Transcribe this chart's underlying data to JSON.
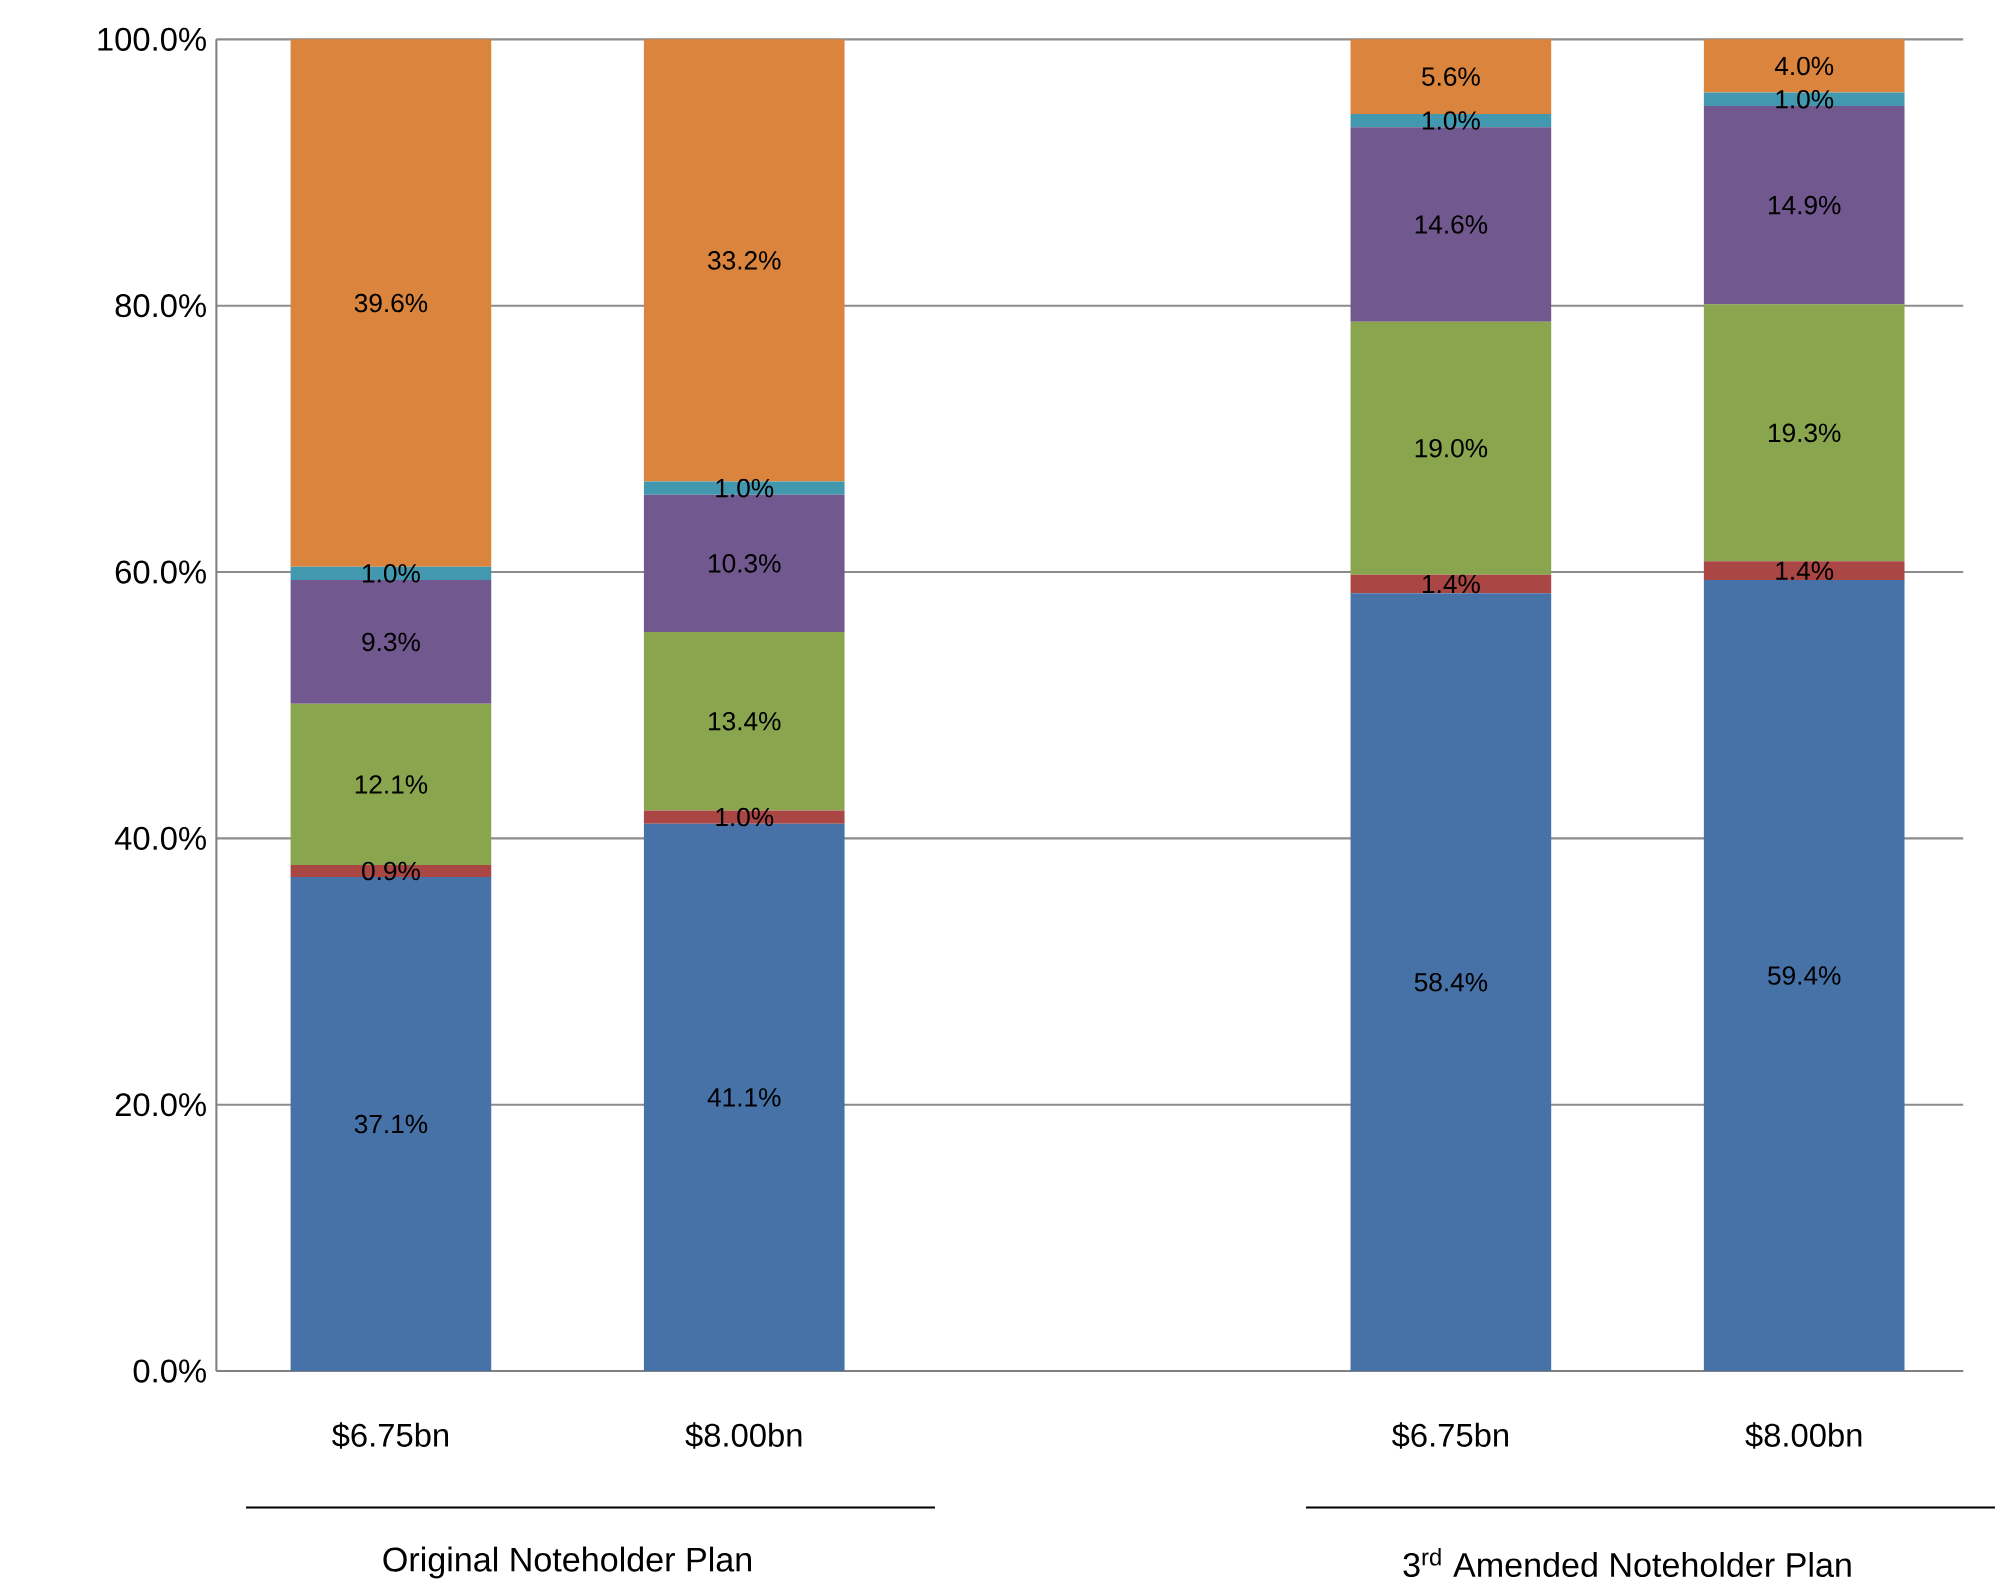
{
  "chart_data": {
    "type": "bar",
    "stacked": true,
    "categories": [
      "$6.75bn",
      "$8.00bn",
      null,
      "$6.75bn",
      "$8.00bn"
    ],
    "series": [
      {
        "color": "#4672a8",
        "values": [
          37.1,
          41.1,
          null,
          58.4,
          59.4
        ],
        "value_labels": [
          "37.1%",
          "41.1%",
          null,
          "58.4%",
          "59.4%"
        ]
      },
      {
        "color": "#aa4644",
        "values": [
          0.9,
          1.0,
          null,
          1.4,
          1.4
        ],
        "value_labels": [
          "0.9%",
          "1.0%",
          null,
          "1.4%",
          "1.4%"
        ]
      },
      {
        "color": "#89a54e",
        "values": [
          12.1,
          13.4,
          null,
          19.0,
          19.3
        ],
        "value_labels": [
          "12.1%",
          "13.4%",
          null,
          "19.0%",
          "19.3%"
        ]
      },
      {
        "color": "#71588f",
        "values": [
          9.3,
          10.3,
          null,
          14.6,
          14.9
        ],
        "value_labels": [
          "9.3%",
          "10.3%",
          null,
          "14.6%",
          "14.9%"
        ]
      },
      {
        "color": "#4198af",
        "values": [
          1.0,
          1.0,
          null,
          1.0,
          1.0
        ],
        "value_labels": [
          "1.0%",
          "1.0%",
          null,
          "1.0%",
          "1.0%"
        ]
      },
      {
        "color": "#db843d",
        "values": [
          39.6,
          33.2,
          null,
          5.6,
          4.0
        ],
        "value_labels": [
          "39.6%",
          "33.2%",
          null,
          "5.6%",
          "4.0%"
        ]
      }
    ],
    "ylim": [
      0,
      100
    ],
    "yticks": [
      {
        "value": 0,
        "label": "0.0%"
      },
      {
        "value": 20,
        "label": "20.0%"
      },
      {
        "value": 40,
        "label": "40.0%"
      },
      {
        "value": 60,
        "label": "60.0%"
      },
      {
        "value": 80,
        "label": "80.0%"
      },
      {
        "value": 100,
        "label": "100.0%"
      }
    ],
    "grid": "y",
    "annotations": [
      "Original Noteholder Plan",
      "3$^{rd}$ Amended Noteholder Plan"
    ]
  }
}
